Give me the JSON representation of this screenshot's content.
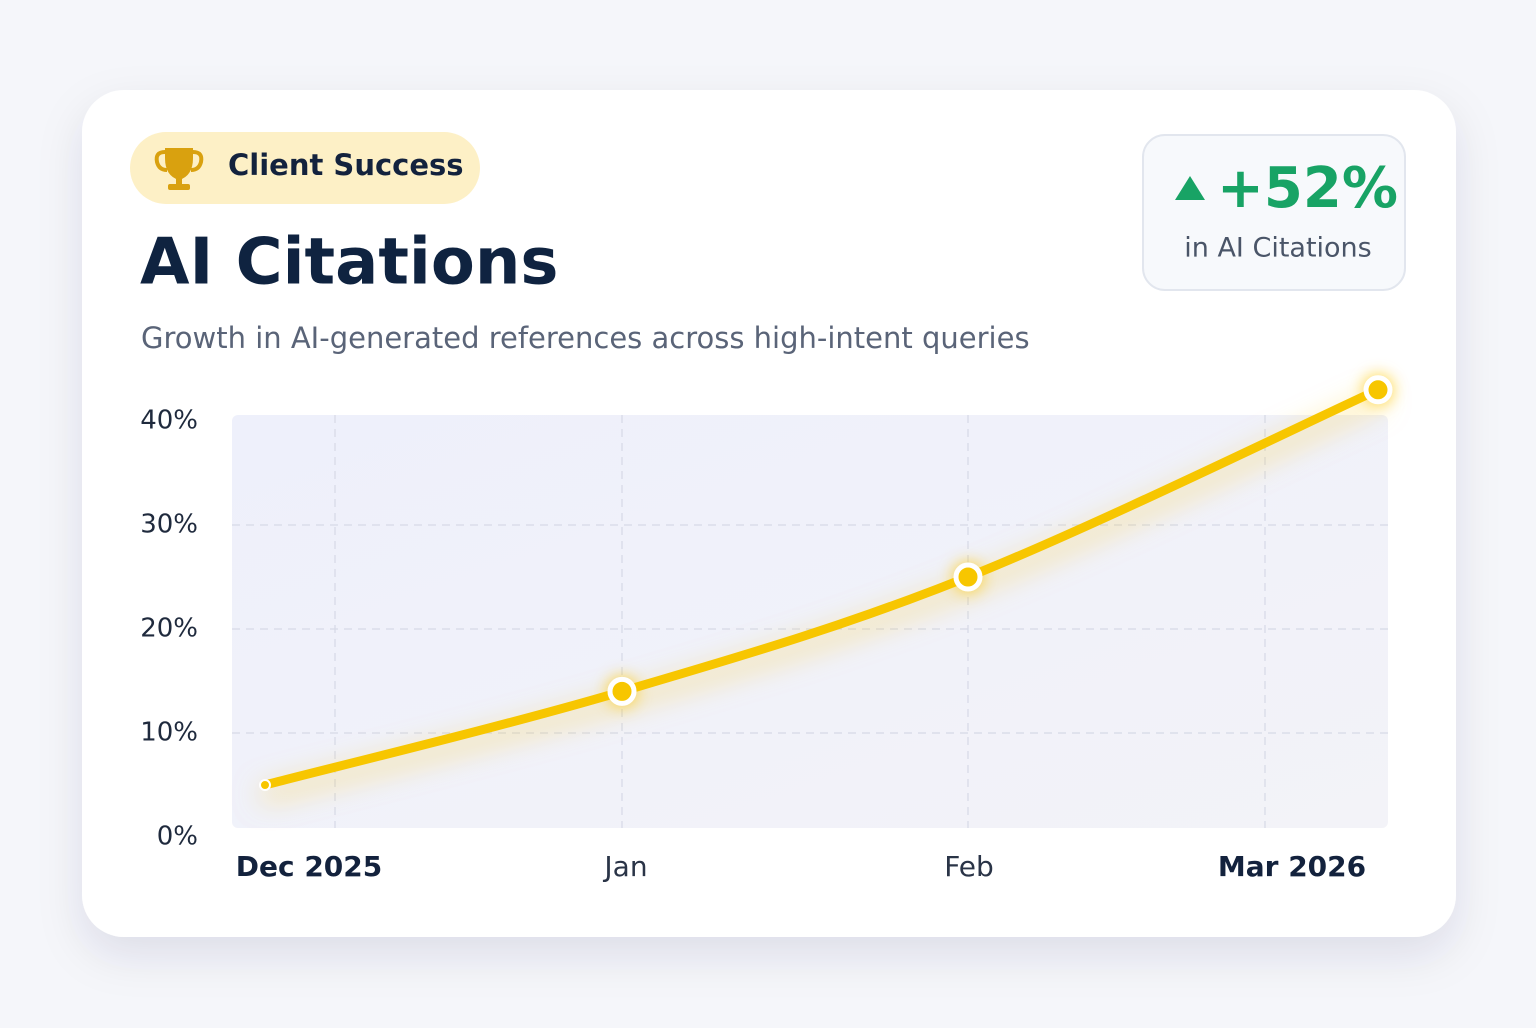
{
  "badge": {
    "label": "Client Success"
  },
  "stat": {
    "value": "+52%",
    "caption": "in AI Citations"
  },
  "chart_data": {
    "type": "line",
    "title": "AI Citations",
    "subtitle": "Growth in AI-generated references across high-intent queries",
    "categories": [
      "Dec 2025",
      "Jan",
      "Feb",
      "Mar 2026"
    ],
    "series": [
      {
        "color": "#f7c600",
        "values": [
          5,
          14,
          25,
          43
        ]
      }
    ],
    "ylim": [
      0,
      40
    ],
    "yticks": [
      {
        "value": 0,
        "label": "0%"
      },
      {
        "value": 10,
        "label": "10%"
      },
      {
        "value": 20,
        "label": "20%"
      },
      {
        "value": 30,
        "label": "30%"
      },
      {
        "value": 40,
        "label": "40%"
      }
    ],
    "grid": true
  }
}
